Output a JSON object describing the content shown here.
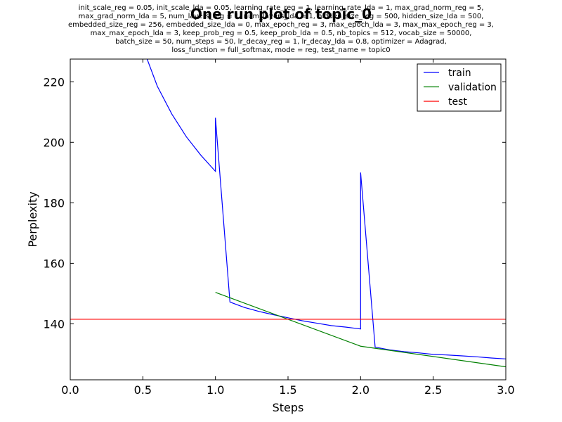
{
  "chart_data": {
    "type": "line",
    "title": "One run plot of topic_0",
    "subtitle_lines": [
      "init_scale_reg = 0.05, init_scale_lda = 0.05, learning_rate_reg = 1, learning_rate_lda = 1, max_grad_norm_reg = 5,",
      "max_grad_norm_lda = 5, num_layers_reg = 1, num_layers_lda = 1, hidden_size_reg = 500, hidden_size_lda = 500,",
      "embedded_size_reg = 256, embedded_size_lda = 0, max_epoch_reg = 3, max_epoch_lda = 3, max_max_epoch_reg = 3,",
      "max_max_epoch_lda = 3, keep_prob_reg = 0.5, keep_prob_lda = 0.5, nb_topics = 512, vocab_size = 50000,",
      "batch_size = 50, num_steps = 50, lr_decay_reg = 1, lr_decay_lda = 0.8, optimizer = Adagrad,",
      "loss_function = full_softmax, mode = reg, test_name = topic0"
    ],
    "xlabel": "Steps",
    "ylabel": "Perplexity",
    "xlim": [
      0,
      3
    ],
    "ylim": [
      121.5,
      227.5
    ],
    "xticks": [
      "0.0",
      "0.5",
      "1.0",
      "1.5",
      "2.0",
      "2.5",
      "3.0"
    ],
    "yticks": [
      "140",
      "160",
      "180",
      "200",
      "220"
    ],
    "xtick_values": [
      0,
      0.5,
      1.0,
      1.5,
      2.0,
      2.5,
      3.0
    ],
    "ytick_values": [
      140,
      160,
      180,
      200,
      220
    ],
    "grid": false,
    "legend_position": "top-right",
    "series": [
      {
        "name": "train",
        "color": "#0000ff",
        "x": [
          0.51,
          0.6,
          0.7,
          0.8,
          0.9,
          1.0,
          1.0,
          1.1,
          1.2,
          1.3,
          1.4,
          1.5,
          1.6,
          1.7,
          1.8,
          1.9,
          2.0,
          2.0,
          2.1,
          2.2,
          2.3,
          2.4,
          2.5,
          2.6,
          2.7,
          2.8,
          2.9,
          3.0
        ],
        "y": [
          230,
          218.5,
          209.3,
          201.8,
          195.7,
          190.4,
          208.1,
          147.2,
          145.4,
          144.1,
          143.0,
          142.0,
          141.0,
          140.2,
          139.4,
          138.9,
          138.3,
          190.0,
          132.3,
          131.4,
          130.8,
          130.4,
          129.9,
          129.7,
          129.4,
          129.1,
          128.7,
          128.4
        ]
      },
      {
        "name": "validation",
        "color": "#008000",
        "x": [
          1.0,
          2.0,
          3.0
        ],
        "y": [
          150.4,
          132.6,
          125.8
        ]
      },
      {
        "name": "test",
        "color": "#ff0000",
        "x": [
          0,
          3.0
        ],
        "y": [
          141.5,
          141.5
        ]
      }
    ]
  }
}
